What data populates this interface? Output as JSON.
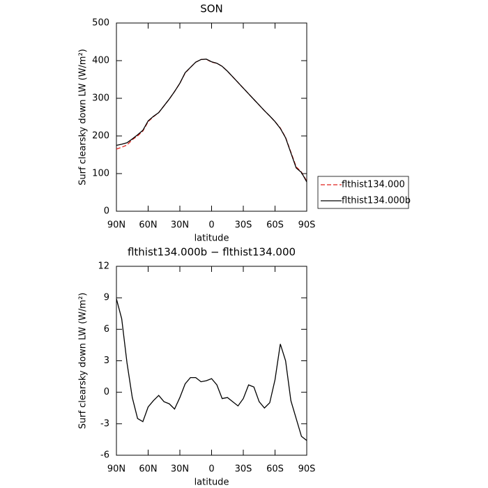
{
  "chart_data": [
    {
      "type": "line",
      "title": "SON",
      "xlabel": "latitude",
      "ylabel": "Surf clearsky down LW (W/m²)",
      "x": [
        90,
        85,
        80,
        75,
        70,
        65,
        60,
        55,
        50,
        45,
        40,
        35,
        30,
        25,
        20,
        15,
        10,
        5,
        0,
        -5,
        -10,
        -15,
        -20,
        -25,
        -30,
        -35,
        -40,
        -45,
        -50,
        -55,
        -60,
        -65,
        -70,
        -75,
        -80,
        -85,
        -90
      ],
      "xlim": [
        90,
        -90
      ],
      "xticks": [
        {
          "value": 90,
          "label": "90N"
        },
        {
          "value": 60,
          "label": "60N"
        },
        {
          "value": 30,
          "label": "30N"
        },
        0,
        {
          "value": -30,
          "label": "30S"
        },
        {
          "value": -60,
          "label": "60S"
        },
        {
          "value": -90,
          "label": "90S"
        }
      ],
      "ylim": [
        0,
        500
      ],
      "yticks": [
        0,
        100,
        200,
        300,
        400,
        500
      ],
      "legend": "outside right",
      "series": [
        {
          "name": "flthist134.000",
          "color": "#e0221c",
          "line_style": "dashed",
          "values": [
            165,
            170,
            176,
            190,
            200,
            213,
            238,
            251,
            262,
            280,
            298,
            318,
            340,
            367,
            382,
            396,
            403,
            404,
            396,
            393,
            385,
            372,
            357,
            342,
            327,
            312,
            297,
            282,
            267,
            253,
            238,
            221,
            196,
            157,
            118,
            104,
            80
          ]
        },
        {
          "name": "flthist134.000b",
          "color": "#000000",
          "line_style": "solid",
          "values": [
            175,
            178,
            182,
            192,
            203,
            215,
            240,
            252,
            262,
            280,
            298,
            318,
            340,
            368,
            382,
            396,
            403,
            404,
            397,
            393,
            385,
            372,
            357,
            342,
            327,
            312,
            297,
            282,
            267,
            253,
            238,
            220,
            195,
            155,
            115,
            103,
            78
          ]
        }
      ]
    },
    {
      "type": "line",
      "title": "flthist134.000b − flthist134.000",
      "xlabel": "latitude",
      "ylabel": "Surf clearsky down LW (W/m²)",
      "x": [
        90,
        85,
        80,
        75,
        70,
        65,
        60,
        55,
        50,
        45,
        40,
        35,
        30,
        25,
        20,
        15,
        10,
        5,
        0,
        -5,
        -10,
        -15,
        -20,
        -25,
        -30,
        -35,
        -40,
        -45,
        -50,
        -55,
        -60,
        -65,
        -70,
        -75,
        -80,
        -85,
        -90
      ],
      "xlim": [
        90,
        -90
      ],
      "xticks": [
        {
          "value": 90,
          "label": "90N"
        },
        {
          "value": 60,
          "label": "60N"
        },
        {
          "value": 30,
          "label": "30N"
        },
        0,
        {
          "value": -30,
          "label": "30S"
        },
        {
          "value": -60,
          "label": "60S"
        },
        {
          "value": -90,
          "label": "90S"
        }
      ],
      "ylim": [
        -6,
        12
      ],
      "yticks": [
        -6,
        -3,
        0,
        3,
        6,
        9,
        12
      ],
      "series": [
        {
          "color": "#000000",
          "line_style": "solid",
          "values": [
            8.9,
            7.0,
            2.8,
            -0.5,
            -2.5,
            -2.8,
            -1.4,
            -0.8,
            -0.3,
            -0.9,
            -1.1,
            -1.6,
            -0.5,
            0.8,
            1.4,
            1.4,
            1.0,
            1.1,
            1.3,
            0.7,
            -0.6,
            -0.5,
            -0.9,
            -1.3,
            -0.6,
            0.7,
            0.5,
            -0.9,
            -1.5,
            -1.0,
            1.2,
            4.6,
            3.0,
            -0.8,
            -2.5,
            -4.2,
            -4.6
          ]
        }
      ]
    }
  ]
}
